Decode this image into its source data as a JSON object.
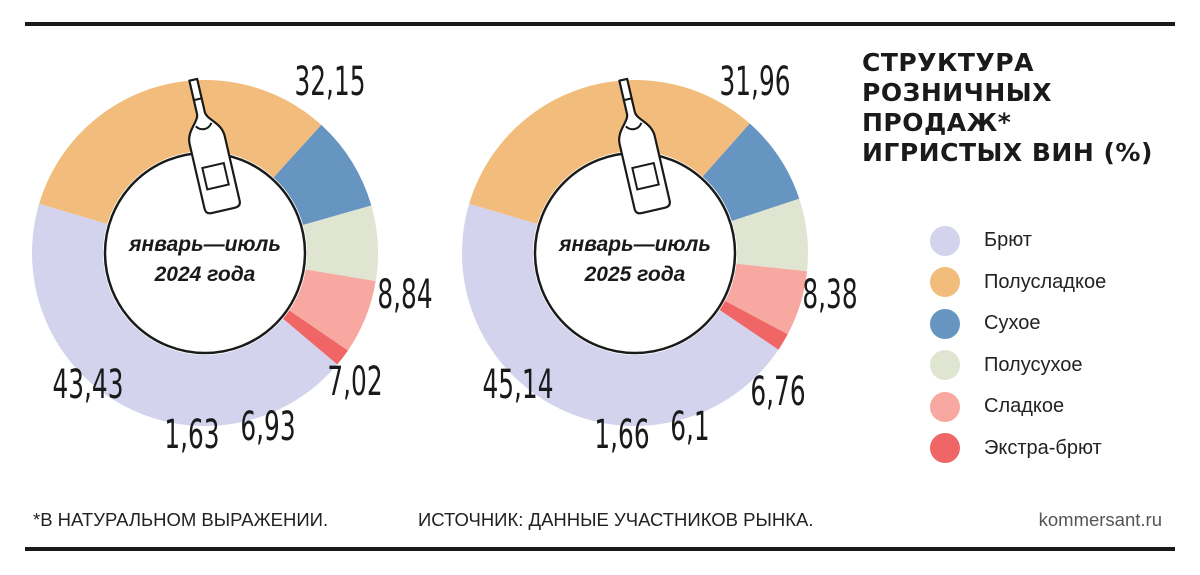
{
  "title_lines": [
    "СТРУКТУРА",
    "РОЗНИЧНЫХ",
    "ПРОДАЖ*",
    "ИГРИСТЫХ ВИН (%)"
  ],
  "chart_data": [
    {
      "type": "pie",
      "center_label_line1": "январь—июль",
      "center_label_line2": "2024 года",
      "categories": [
        "Полусладкое",
        "Сухое",
        "Полусухое",
        "Сладкое",
        "Экстра-брют",
        "Брют"
      ],
      "values": [
        32.15,
        8.84,
        7.02,
        6.93,
        1.63,
        43.43
      ],
      "value_labels": [
        "32,15",
        "8,84",
        "7,02",
        "6,93",
        "1,63",
        "43,43"
      ]
    },
    {
      "type": "pie",
      "center_label_line1": "январь—июль",
      "center_label_line2": "2025 года",
      "categories": [
        "Полусладкое",
        "Сухое",
        "Полусухое",
        "Сладкое",
        "Экстра-брют",
        "Брют"
      ],
      "values": [
        31.96,
        8.38,
        6.76,
        6.1,
        1.66,
        45.14
      ],
      "value_labels": [
        "31,96",
        "8,38",
        "6,76",
        "6,1",
        "1,66",
        "45,14"
      ]
    }
  ],
  "legend": [
    {
      "label": "Брют",
      "color": "#d3d3ed"
    },
    {
      "label": "Полусладкое",
      "color": "#f2bd7c"
    },
    {
      "label": "Сухое",
      "color": "#6795c1"
    },
    {
      "label": "Полусухое",
      "color": "#dfe5d1"
    },
    {
      "label": "Сладкое",
      "color": "#f7a8a0"
    },
    {
      "label": "Экстра-брют",
      "color": "#f06565"
    }
  ],
  "footnote": "*В НАТУРАЛЬНОМ ВЫРАЖЕНИИ.",
  "source": "ИСТОЧНИК: ДАННЫЕ УЧАСТНИКОВ РЫНКА.",
  "site": "kommersant.ru"
}
